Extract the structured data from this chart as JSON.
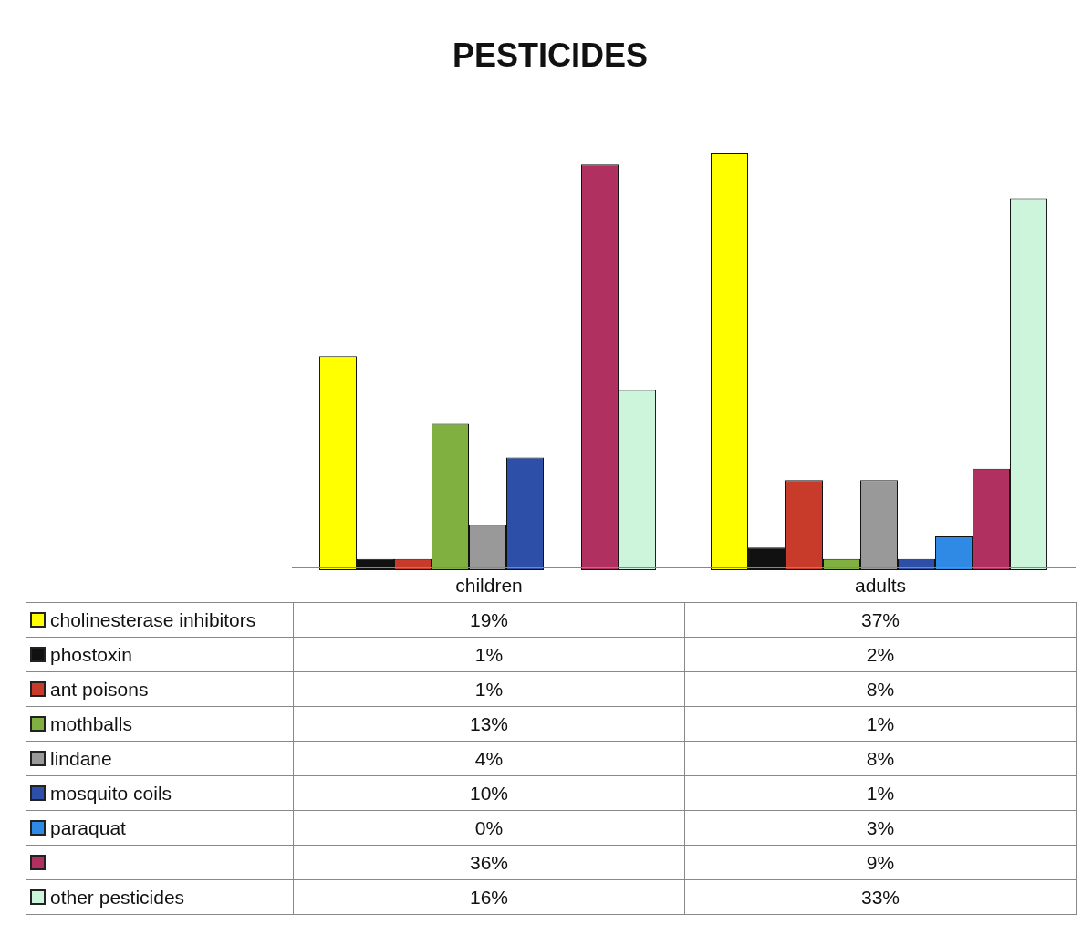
{
  "chart_data": {
    "type": "bar",
    "title": "PESTICIDES",
    "categories": [
      "children",
      "adults"
    ],
    "series": [
      {
        "name": "cholinesterase inhibitors",
        "color": "#ffff00",
        "values": [
          19,
          37
        ],
        "value_labels": [
          "19%",
          "37%"
        ]
      },
      {
        "name": "phostoxin",
        "color": "#111111",
        "values": [
          1,
          2
        ],
        "value_labels": [
          "1%",
          "2%"
        ]
      },
      {
        "name": "ant poisons",
        "color": "#c83a2a",
        "values": [
          1,
          8
        ],
        "value_labels": [
          "1%",
          "8%"
        ]
      },
      {
        "name": "mothballs",
        "color": "#80b040",
        "values": [
          13,
          1
        ],
        "value_labels": [
          "13%",
          "1%"
        ]
      },
      {
        "name": "lindane",
        "color": "#999999",
        "values": [
          4,
          8
        ],
        "value_labels": [
          "4%",
          "8%"
        ]
      },
      {
        "name": "mosquito coils",
        "color": "#2e4fa8",
        "values": [
          10,
          1
        ],
        "value_labels": [
          "10%",
          "1%"
        ]
      },
      {
        "name": "paraquat",
        "color": "#2f8ae6",
        "values": [
          0,
          3
        ],
        "value_labels": [
          "0%",
          "3%"
        ]
      },
      {
        "color": "#b03060",
        "values": [
          36,
          9
        ],
        "value_labels": [
          "36%",
          "9%"
        ]
      },
      {
        "name": "other pesticides",
        "color": "#ccf5dc",
        "values": [
          16,
          33
        ],
        "value_labels": [
          "16%",
          "33%"
        ]
      }
    ],
    "legend": "bottom"
  }
}
